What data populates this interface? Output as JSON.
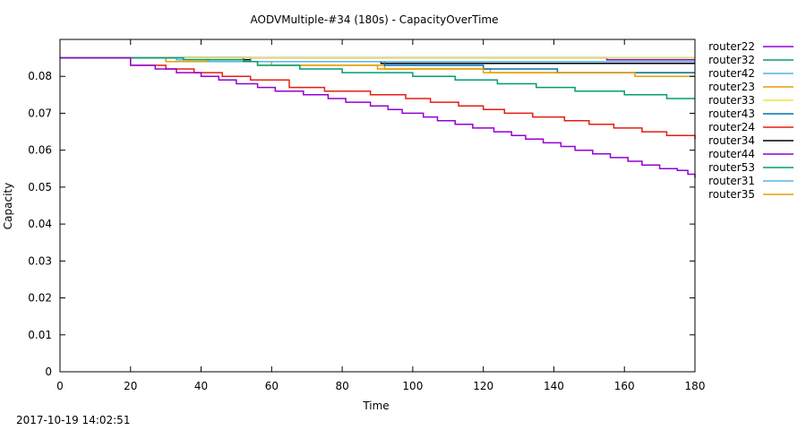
{
  "chart_data": {
    "type": "line",
    "title": "AODVMultiple-#34 (180s) - CapacityOverTime",
    "xlabel": "Time",
    "ylabel": "Capacity",
    "xlim": [
      0,
      180
    ],
    "ylim": [
      0,
      0.09
    ],
    "xticks": [
      0,
      20,
      40,
      60,
      80,
      100,
      120,
      140,
      160,
      180
    ],
    "yticks": [
      0,
      0.01,
      0.02,
      0.03,
      0.04,
      0.05,
      0.06,
      0.07,
      0.08
    ],
    "ytick_labels": [
      "0",
      "0.01",
      "0.02",
      "0.03",
      "0.04",
      "0.05",
      "0.06",
      "0.07",
      "0.08"
    ],
    "grid": false,
    "legend_position": "outside-right",
    "series": [
      {
        "name": "router22",
        "color": "#9400d3",
        "x": [
          0,
          12,
          20,
          27,
          33,
          40,
          45,
          50,
          56,
          61,
          69,
          76,
          81,
          88,
          93,
          97,
          103,
          107,
          112,
          117,
          123,
          128,
          132,
          137,
          142,
          146,
          151,
          156,
          161,
          165,
          170,
          175,
          178,
          180
        ],
        "y": [
          0.085,
          0.085,
          0.083,
          0.082,
          0.081,
          0.08,
          0.079,
          0.078,
          0.077,
          0.076,
          0.075,
          0.074,
          0.073,
          0.072,
          0.071,
          0.07,
          0.069,
          0.068,
          0.067,
          0.066,
          0.065,
          0.064,
          0.063,
          0.062,
          0.061,
          0.06,
          0.059,
          0.058,
          0.057,
          0.056,
          0.055,
          0.0545,
          0.0535,
          0.0525
        ]
      },
      {
        "name": "router32",
        "color": "#009e73",
        "x": [
          0,
          27,
          35,
          52,
          56,
          68,
          80,
          100,
          112,
          124,
          135,
          146,
          160,
          172,
          180
        ],
        "y": [
          0.085,
          0.085,
          0.0845,
          0.084,
          0.083,
          0.082,
          0.081,
          0.08,
          0.079,
          0.078,
          0.077,
          0.076,
          0.075,
          0.074,
          0.074
        ]
      },
      {
        "name": "router42",
        "color": "#56b4e9",
        "x": [
          0,
          25,
          33,
          42,
          60,
          80,
          100,
          120,
          140,
          155,
          164,
          180
        ],
        "y": [
          0.085,
          0.085,
          0.0845,
          0.084,
          0.084,
          0.084,
          0.084,
          0.084,
          0.084,
          0.084,
          0.084,
          0.084
        ]
      },
      {
        "name": "router23",
        "color": "#e69f00",
        "x": [
          0,
          13,
          20,
          30,
          48,
          60,
          80,
          90,
          100,
          120,
          140,
          160,
          163,
          180
        ],
        "y": [
          0.085,
          0.085,
          0.085,
          0.084,
          0.084,
          0.083,
          0.083,
          0.082,
          0.082,
          0.081,
          0.081,
          0.081,
          0.08,
          0.08
        ]
      },
      {
        "name": "router33",
        "color": "#f0e442",
        "x": [
          0,
          20,
          40,
          60,
          80,
          100,
          120,
          140,
          160,
          180
        ],
        "y": [
          0.085,
          0.085,
          0.085,
          0.085,
          0.085,
          0.085,
          0.085,
          0.085,
          0.085,
          0.085
        ]
      },
      {
        "name": "router43",
        "color": "#0072b2",
        "x": [
          0,
          20,
          50,
          54,
          90,
          92,
          109,
          120,
          141,
          160,
          180
        ],
        "y": [
          0.085,
          0.085,
          0.085,
          0.084,
          0.084,
          0.083,
          0.083,
          0.082,
          0.081,
          0.081,
          0.081
        ]
      },
      {
        "name": "router24",
        "color": "#e51e10",
        "x": [
          0,
          14,
          20,
          30,
          38,
          46,
          54,
          65,
          75,
          88,
          98,
          105,
          113,
          120,
          126,
          134,
          143,
          150,
          157,
          165,
          172,
          180
        ],
        "y": [
          0.085,
          0.085,
          0.083,
          0.082,
          0.081,
          0.08,
          0.079,
          0.077,
          0.076,
          0.075,
          0.074,
          0.073,
          0.072,
          0.071,
          0.07,
          0.069,
          0.068,
          0.067,
          0.066,
          0.065,
          0.064,
          0.063
        ]
      },
      {
        "name": "router34",
        "color": "#000000",
        "x": [
          0,
          50,
          52,
          54,
          90,
          91,
          180
        ],
        "y": [
          0.085,
          0.085,
          0.0845,
          0.084,
          0.084,
          0.0835,
          0.0835
        ]
      },
      {
        "name": "router44",
        "color": "#9400d3",
        "x": [
          0,
          150,
          155,
          180
        ],
        "y": [
          0.085,
          0.085,
          0.0845,
          0.0845
        ]
      },
      {
        "name": "router53",
        "color": "#009e73",
        "x": [
          0,
          30,
          60,
          90,
          120,
          150,
          180
        ],
        "y": [
          0.085,
          0.085,
          0.085,
          0.085,
          0.085,
          0.085,
          0.085
        ]
      },
      {
        "name": "router31",
        "color": "#56b4e9",
        "x": [
          0,
          60,
          120,
          180
        ],
        "y": [
          0.085,
          0.085,
          0.085,
          0.085
        ]
      },
      {
        "name": "router35",
        "color": "#e69f00",
        "x": [
          0,
          13,
          25,
          30,
          48,
          56,
          80,
          90,
          92,
          100,
          122,
          140,
          160,
          180
        ],
        "y": [
          0.085,
          0.085,
          0.085,
          0.084,
          0.084,
          0.083,
          0.083,
          0.083,
          0.082,
          0.082,
          0.081,
          0.081,
          0.081,
          0.081
        ]
      }
    ]
  },
  "footer": {
    "timestamp": "2017-10-19 14:02:51"
  }
}
